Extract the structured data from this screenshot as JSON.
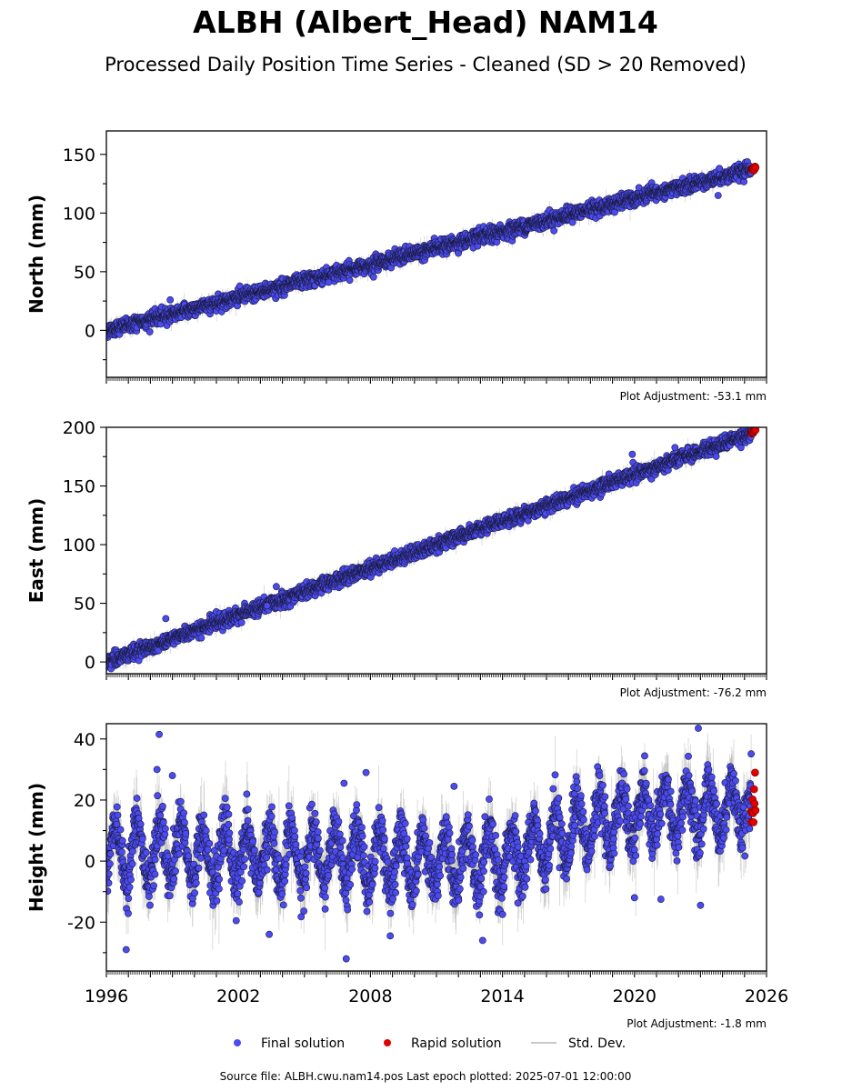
{
  "title": "ALBH (Albert_Head) NAM14",
  "subtitle": "Processed Daily Position Time Series - Cleaned (SD > 20 Removed)",
  "colors": {
    "final": "#4b4bf0",
    "rapid": "#e00000",
    "stddev": "#b8b8b8",
    "edge": "#1a1a40"
  },
  "legend": [
    {
      "label": "Final solution",
      "color": "#4b4bf0",
      "kind": "dot"
    },
    {
      "label": "Rapid solution",
      "color": "#e00000",
      "kind": "dot"
    },
    {
      "label": "Std. Dev.",
      "color": "#b8b8b8",
      "kind": "line"
    }
  ],
  "source_text": "Source file: ALBH.cwu.nam14.pos  Last epoch plotted: 2025-07-01 12:00:00",
  "chart_data": [
    {
      "type": "scatter",
      "name": "north",
      "ylabel": "North (mm)",
      "xlim": [
        1996,
        2026
      ],
      "ylim": [
        -40,
        170
      ],
      "yticks": [
        0,
        50,
        100,
        150
      ],
      "show_x_labels": false,
      "adjustment": "Plot Adjustment: -53.1 mm",
      "series": [
        {
          "kind": "final",
          "x_start": 1996.0,
          "x_end": 2025.3,
          "y_start": 0,
          "y_end": 137,
          "noise": 3,
          "sd": 3
        },
        {
          "kind": "rapid",
          "x_start": 2025.3,
          "x_end": 2025.5,
          "y_start": 136.5,
          "y_end": 138.5,
          "noise": 0.8
        }
      ],
      "outliers": [
        {
          "x": 2006.1,
          "y": 41
        },
        {
          "x": 2023.8,
          "y": 115
        },
        {
          "x": 1998.9,
          "y": 26
        }
      ]
    },
    {
      "type": "scatter",
      "name": "east",
      "ylabel": "East (mm)",
      "xlim": [
        1996,
        2026
      ],
      "ylim": [
        -10,
        200
      ],
      "yticks": [
        0,
        50,
        100,
        150,
        200
      ],
      "show_x_labels": false,
      "adjustment": "Plot Adjustment: -76.2 mm",
      "series": [
        {
          "kind": "final",
          "x_start": 1996.0,
          "x_end": 2025.3,
          "y_start": 0,
          "y_end": 195,
          "noise": 3,
          "sd": 3
        },
        {
          "kind": "rapid",
          "x_start": 2025.3,
          "x_end": 2025.5,
          "y_start": 195,
          "y_end": 198,
          "noise": 0.8
        }
      ],
      "outliers": [
        {
          "x": 1998.7,
          "y": 37
        },
        {
          "x": 2019.9,
          "y": 177
        },
        {
          "x": 2003.3,
          "y": 48
        }
      ]
    },
    {
      "type": "scatter",
      "name": "height",
      "ylabel": "Height (mm)",
      "xlim": [
        1996,
        2026
      ],
      "ylim": [
        -36,
        45
      ],
      "yticks": [
        -20,
        0,
        20,
        40
      ],
      "xticks": [
        1996,
        2002,
        2008,
        2014,
        2020,
        2026
      ],
      "show_x_labels": true,
      "adjustment": "Plot Adjustment: -1.8 mm",
      "series": [
        {
          "kind": "final",
          "x_start": 1996.0,
          "x_end": 2025.3,
          "seasonal_amp": 9,
          "noise": 4,
          "sd": 5,
          "baseline": [
            [
              1996,
              3
            ],
            [
              2014,
              0
            ],
            [
              2016,
              7
            ],
            [
              2019,
              14
            ],
            [
              2025.3,
              18
            ]
          ]
        },
        {
          "kind": "rapid",
          "x_start": 2025.3,
          "x_end": 2025.5,
          "y_start": 11,
          "y_end": 24,
          "noise": 4
        }
      ],
      "outliers": [
        {
          "x": 1998.4,
          "y": 41.5
        },
        {
          "x": 1998.3,
          "y": 30
        },
        {
          "x": 1999.0,
          "y": 28
        },
        {
          "x": 1996.9,
          "y": -29
        },
        {
          "x": 2006.9,
          "y": -32
        },
        {
          "x": 2007.8,
          "y": 29
        },
        {
          "x": 2006.8,
          "y": 25.5
        },
        {
          "x": 2022.9,
          "y": 43.5
        },
        {
          "x": 2023.0,
          "y": -14.5
        },
        {
          "x": 2020.0,
          "y": -12
        },
        {
          "x": 2021.2,
          "y": -12.5
        },
        {
          "x": 2013.1,
          "y": -26
        },
        {
          "x": 2003.4,
          "y": -24
        },
        {
          "x": 2008.9,
          "y": -24.5
        },
        {
          "x": 2011.8,
          "y": 24.5
        },
        {
          "x": 2001.9,
          "y": -19.5
        }
      ]
    }
  ]
}
